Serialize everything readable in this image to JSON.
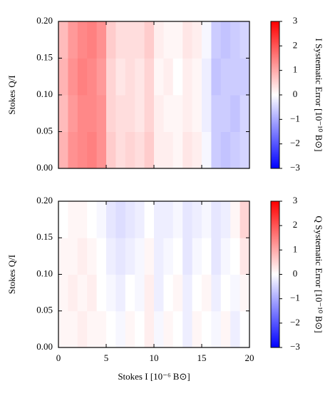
{
  "chart_data": [
    {
      "type": "heatmap",
      "y_label": "Stokes Q/I",
      "colorbar_label": "I Systematic Error [10⁻¹⁰ B⊙]",
      "xlim": [
        0,
        20
      ],
      "xticks": [
        0,
        5,
        10,
        15,
        20
      ],
      "ylim": [
        0,
        0.2
      ],
      "yticks": [
        {
          "value": 0,
          "label": "0.00"
        },
        {
          "value": 0.05,
          "label": "0.05"
        },
        {
          "value": 0.1,
          "label": "0.10"
        },
        {
          "value": 0.15,
          "label": "0.15"
        },
        {
          "value": 0.2,
          "label": "0.20"
        }
      ],
      "zlim": [
        -3,
        3
      ],
      "zticks": [
        {
          "value": -3,
          "label": "−3"
        },
        {
          "value": -2,
          "label": "−2"
        },
        {
          "value": -1,
          "label": "−1"
        },
        0,
        1,
        2,
        3
      ],
      "z": [
        [
          0.9,
          1.3,
          1.4,
          1.5,
          1.3,
          0.6,
          0.4,
          0.5,
          0.4,
          0.6,
          0.2,
          0.2,
          0.1,
          0.3,
          0.2,
          -0.1,
          -0.6,
          -0.7,
          -0.6,
          -0.5
        ],
        [
          0.8,
          1.2,
          1.4,
          1.4,
          1.3,
          0.5,
          0.4,
          0.4,
          0.3,
          0.5,
          0.2,
          0.1,
          0.1,
          0.2,
          0.1,
          -0.2,
          -0.6,
          -0.6,
          -0.7,
          -0.5
        ],
        [
          0.9,
          1.3,
          1.5,
          1.4,
          1.2,
          0.5,
          0.3,
          0.4,
          0.3,
          0.5,
          0.1,
          0.2,
          0.0,
          0.2,
          0.1,
          -0.2,
          -0.7,
          -0.6,
          -0.6,
          -0.6
        ],
        [
          0.8,
          1.2,
          1.4,
          1.5,
          1.3,
          0.6,
          0.4,
          0.4,
          0.4,
          0.6,
          0.2,
          0.1,
          0.1,
          0.3,
          0.2,
          -0.1,
          -0.6,
          -0.7,
          -0.6,
          -0.5
        ]
      ]
    },
    {
      "type": "heatmap",
      "x_label": "Stokes I [10⁻⁶ B⊙]",
      "y_label": "Stokes Q/I",
      "colorbar_label": "Q Systematic Error [10⁻¹⁰ B⊙]",
      "xlim": [
        0,
        20
      ],
      "xticks": [
        0,
        5,
        10,
        15,
        20
      ],
      "ylim": [
        0,
        0.2
      ],
      "yticks": [
        {
          "value": 0,
          "label": "0.00"
        },
        {
          "value": 0.05,
          "label": "0.05"
        },
        {
          "value": 0.1,
          "label": "0.10"
        },
        {
          "value": 0.15,
          "label": "0.15"
        },
        {
          "value": 0.2,
          "label": "0.20"
        }
      ],
      "zlim": [
        -3,
        3
      ],
      "zticks": [
        {
          "value": -3,
          "label": "−3"
        },
        {
          "value": -2,
          "label": "−2"
        },
        {
          "value": -1,
          "label": "−1"
        },
        0,
        1,
        2,
        3
      ],
      "z": [
        [
          0.1,
          0.1,
          0.2,
          0.1,
          0.1,
          0.0,
          -0.1,
          0.1,
          0.0,
          0.2,
          -0.1,
          0.1,
          0.0,
          -0.2,
          0.1,
          0.0,
          -0.1,
          0.1,
          -0.2,
          0.0
        ],
        [
          0.1,
          0.2,
          0.1,
          0.2,
          0.0,
          -0.1,
          -0.2,
          0.0,
          -0.1,
          0.2,
          -0.2,
          0.0,
          0.1,
          -0.2,
          0.0,
          0.1,
          -0.2,
          0.0,
          -0.1,
          0.1
        ],
        [
          0.1,
          0.1,
          0.2,
          0.1,
          0.0,
          -0.2,
          -0.3,
          -0.2,
          -0.1,
          0.1,
          -0.2,
          -0.1,
          0.0,
          -0.3,
          -0.1,
          0.0,
          -0.3,
          -0.1,
          0.0,
          0.3
        ],
        [
          0.0,
          0.1,
          0.1,
          0.0,
          -0.1,
          -0.3,
          -0.4,
          -0.3,
          -0.2,
          0.0,
          -0.2,
          -0.2,
          -0.1,
          -0.3,
          -0.2,
          -0.1,
          -0.3,
          -0.2,
          0.1,
          0.5
        ]
      ]
    }
  ]
}
